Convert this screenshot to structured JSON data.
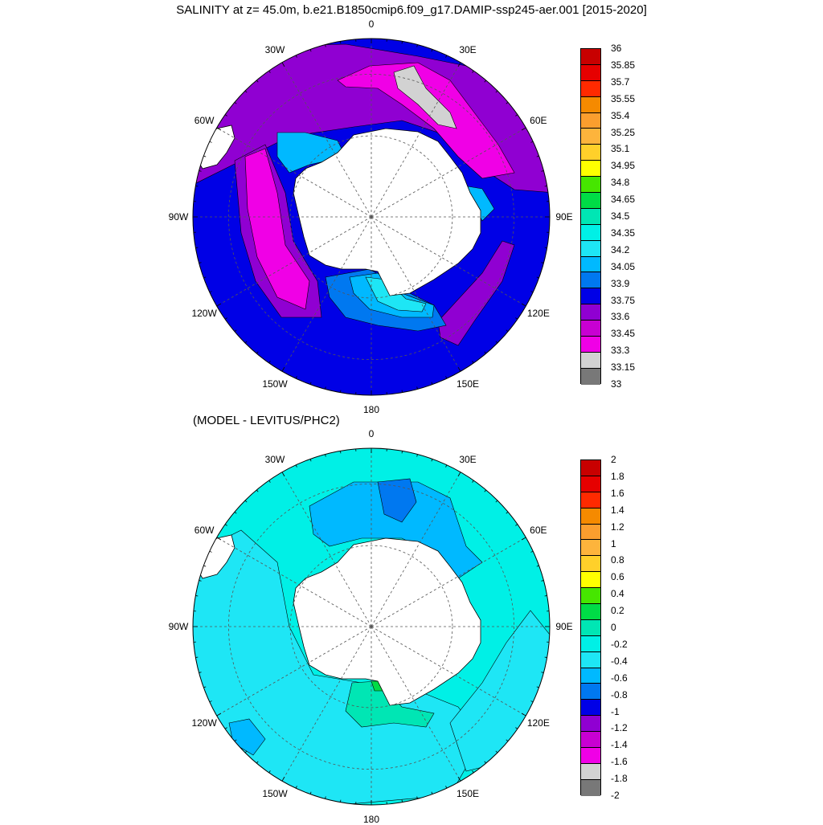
{
  "title": "SALINITY at z=  45.0m, b.e21.B1850cmip6.f09_g17.DAMIP-ssp245-aer.001 [2015-2020]",
  "subtitle": "(MODEL - LEVITUS/PHC2)",
  "longitude_labels": [
    "0",
    "30E",
    "60E",
    "90E",
    "120E",
    "150E",
    "180",
    "150W",
    "120W",
    "90W",
    "60W",
    "30W"
  ],
  "colors": {
    "land": "#ffffff",
    "grid_line": "#555555"
  },
  "top_panel": {
    "name": "salinity",
    "colorbar": {
      "ticks": [
        "36",
        "35.85",
        "35.7",
        "35.55",
        "35.4",
        "35.25",
        "35.1",
        "34.95",
        "34.8",
        "34.65",
        "34.5",
        "34.35",
        "34.2",
        "34.05",
        "33.9",
        "33.75",
        "33.6",
        "33.45",
        "33.3",
        "33.15",
        "33"
      ],
      "colors": [
        "#c80000",
        "#e60000",
        "#ff2a00",
        "#f58a00",
        "#fb9e2e",
        "#fdb43c",
        "#ffd02a",
        "#ffff00",
        "#46e600",
        "#00dc46",
        "#00e6b4",
        "#00f0e6",
        "#1ee6f5",
        "#00b9ff",
        "#0078f0",
        "#0000e6",
        "#9000d2",
        "#c800d2",
        "#f000e6",
        "#d2d2d2",
        "#787878"
      ]
    },
    "base_color": "#0000e6"
  },
  "bottom_panel": {
    "name": "difference",
    "colorbar": {
      "ticks": [
        "2",
        "1.8",
        "1.6",
        "1.4",
        "1.2",
        "1",
        "0.8",
        "0.6",
        "0.4",
        "0.2",
        "0",
        "-0.2",
        "-0.4",
        "-0.6",
        "-0.8",
        "-1",
        "-1.2",
        "-1.4",
        "-1.6",
        "-1.8",
        "-2"
      ],
      "colors": [
        "#c80000",
        "#e60000",
        "#ff2a00",
        "#f58a00",
        "#fb9e2e",
        "#fdb43c",
        "#ffd02a",
        "#ffff00",
        "#46e600",
        "#00dc46",
        "#00e6b4",
        "#00f0e6",
        "#1ee6f5",
        "#00b9ff",
        "#0078f0",
        "#0000e6",
        "#9000d2",
        "#c800d2",
        "#f000e6",
        "#d2d2d2",
        "#787878"
      ]
    },
    "base_color": "#00f0e6"
  }
}
